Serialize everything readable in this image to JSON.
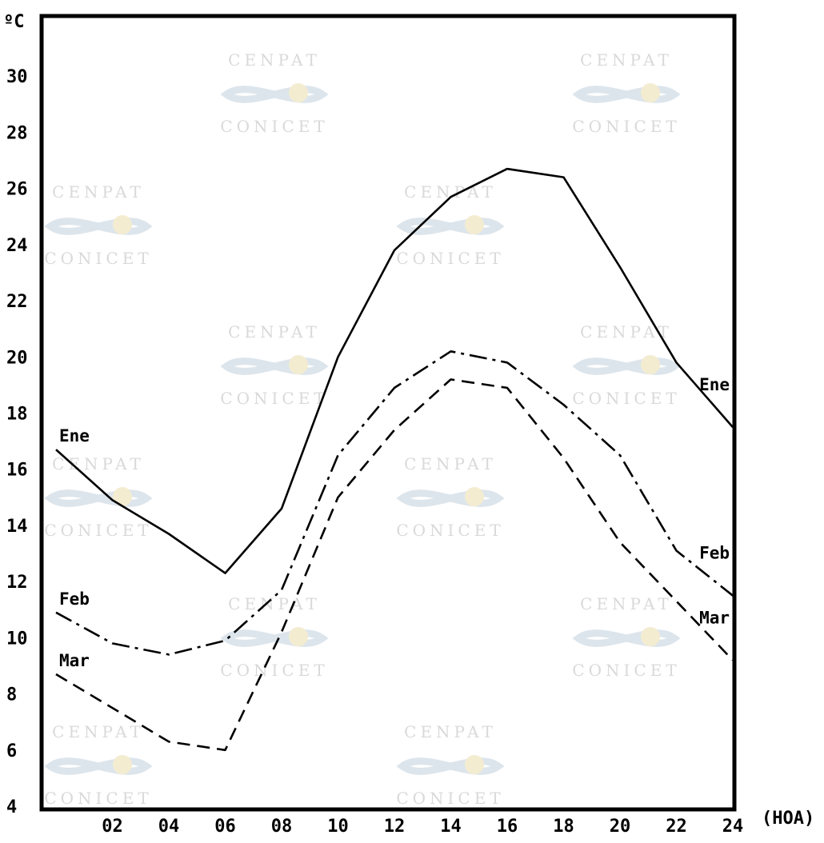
{
  "chart_data": {
    "type": "line",
    "ylabel": "ºC",
    "xlabel": "(HOA)",
    "x": [
      0,
      2,
      4,
      6,
      8,
      10,
      12,
      14,
      16,
      18,
      20,
      22,
      24
    ],
    "xticks": [
      "02",
      "04",
      "06",
      "08",
      "10",
      "12",
      "14",
      "16",
      "18",
      "20",
      "22",
      "24"
    ],
    "yticks": [
      "4",
      "6",
      "8",
      "10",
      "12",
      "14",
      "16",
      "18",
      "20",
      "22",
      "24",
      "26",
      "28",
      "30"
    ],
    "xlim": [
      0,
      24
    ],
    "ylim": [
      4,
      32
    ],
    "grid": false,
    "legend": "none (series labelled at both ends of each line)",
    "series": [
      {
        "name": "Ene",
        "style": "solid",
        "values": [
          16.7,
          14.9,
          13.7,
          12.3,
          14.6,
          20.0,
          23.8,
          25.7,
          26.7,
          26.4,
          23.2,
          19.8,
          17.5
        ]
      },
      {
        "name": "Feb",
        "style": "dash-dot",
        "values": [
          10.9,
          9.8,
          9.4,
          9.9,
          11.7,
          16.5,
          18.9,
          20.2,
          19.8,
          18.3,
          16.5,
          13.1,
          11.5
        ]
      },
      {
        "name": "Mar",
        "style": "dashed",
        "values": [
          8.7,
          7.5,
          6.3,
          6.0,
          10.2,
          15.0,
          17.4,
          19.2,
          18.9,
          16.4,
          13.4,
          11.3,
          9.2
        ]
      }
    ],
    "watermark": {
      "top": "CENPAT",
      "bottom": "CONICET"
    }
  }
}
